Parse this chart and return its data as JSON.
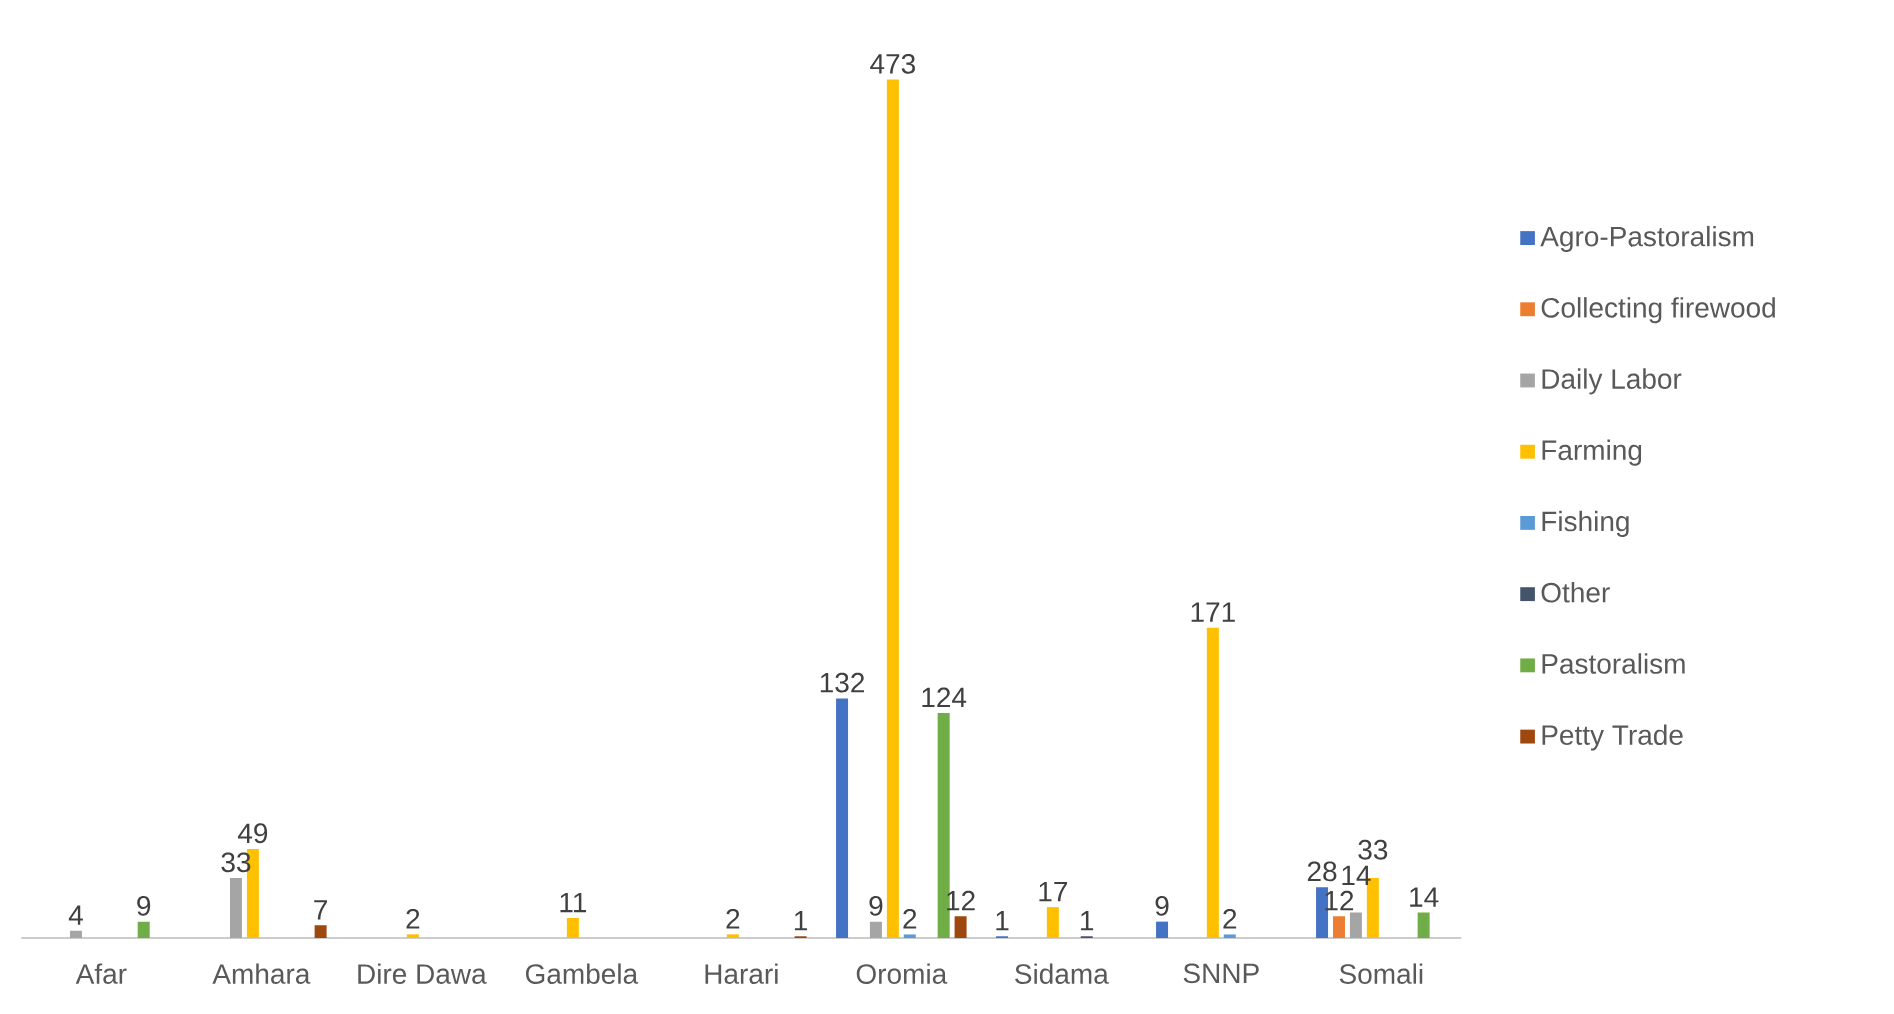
{
  "chart_data": {
    "type": "bar",
    "categories": [
      "Afar",
      "Amhara",
      "Dire Dawa",
      "Gambela",
      "Harari",
      "Oromia",
      "Sidama",
      "SNNP",
      "Somali"
    ],
    "series": [
      {
        "name": "Agro-Pastoralism",
        "color": "#4472c4",
        "values": [
          null,
          null,
          null,
          null,
          null,
          132,
          1,
          9,
          28
        ]
      },
      {
        "name": "Collecting firewood",
        "color": "#ed7d31",
        "values": [
          null,
          null,
          null,
          null,
          null,
          null,
          null,
          null,
          12
        ]
      },
      {
        "name": "Daily Labor",
        "color": "#a5a5a5",
        "values": [
          4,
          33,
          null,
          null,
          null,
          9,
          null,
          null,
          14
        ]
      },
      {
        "name": "Farming",
        "color": "#ffc000",
        "values": [
          null,
          49,
          2,
          11,
          2,
          473,
          17,
          171,
          33
        ]
      },
      {
        "name": "Fishing",
        "color": "#5b9bd5",
        "values": [
          null,
          null,
          null,
          null,
          null,
          2,
          null,
          2,
          null
        ]
      },
      {
        "name": "Other",
        "color": "#44546a",
        "values": [
          null,
          null,
          null,
          null,
          null,
          null,
          1,
          null,
          null
        ]
      },
      {
        "name": "Pastoralism",
        "color": "#70ad47",
        "values": [
          9,
          null,
          null,
          null,
          null,
          124,
          null,
          null,
          14
        ]
      },
      {
        "name": "Petty Trade",
        "color": "#9e480e",
        "values": [
          null,
          7,
          null,
          null,
          1,
          12,
          null,
          null,
          null
        ]
      }
    ],
    "data_labels": true,
    "legend": "right"
  }
}
